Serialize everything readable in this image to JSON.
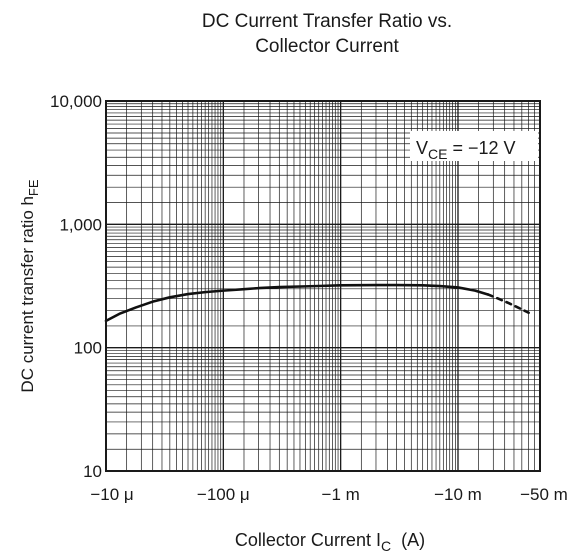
{
  "chart_data": {
    "type": "line",
    "title_line1": "DC Current Transfer Ratio vs.",
    "title_line2": "Collector Current",
    "xlabel": {
      "main": "Collector Current  I",
      "sub": "C",
      "unit": "(A)"
    },
    "ylabel": {
      "main": "DC current transfer ratio  h",
      "sub": "FE"
    },
    "x_scale": "log",
    "y_scale": "log",
    "xlim": [
      1e-05,
      0.05
    ],
    "ylim": [
      10,
      10000
    ],
    "grid": true,
    "x_ticks": [
      {
        "value": 1e-05,
        "label": "−10 μ"
      },
      {
        "value": 0.0001,
        "label": "−100 μ"
      },
      {
        "value": 0.001,
        "label": "−1 m"
      },
      {
        "value": 0.01,
        "label": "−10 m"
      },
      {
        "value": 0.05,
        "label": "−50 m"
      }
    ],
    "y_ticks": [
      {
        "value": 10,
        "label": "10"
      },
      {
        "value": 100,
        "label": "100"
      },
      {
        "value": 1000,
        "label": "1,000"
      },
      {
        "value": 10000,
        "label": "10,000"
      }
    ],
    "annotation": {
      "main": "V",
      "sub": "CE",
      "rest": " = −12 V"
    },
    "series": [
      {
        "style": "solid",
        "x": [
          1e-05,
          1.3e-05,
          1.8e-05,
          2.5e-05,
          3.5e-05,
          5e-05,
          7e-05,
          0.0001,
          0.00015,
          0.0002,
          0.0003,
          0.0005,
          0.0007,
          0.001,
          0.002,
          0.003,
          0.005,
          0.007,
          0.01,
          0.014,
          0.018
        ],
        "y": [
          165,
          188,
          212,
          236,
          256,
          272,
          282,
          290,
          298,
          304,
          310,
          314,
          317,
          320,
          322,
          322,
          320,
          316,
          308,
          290,
          270
        ]
      },
      {
        "style": "dashed",
        "x": [
          0.018,
          0.022,
          0.027,
          0.033,
          0.04
        ],
        "y": [
          270,
          250,
          230,
          210,
          192
        ]
      }
    ]
  }
}
